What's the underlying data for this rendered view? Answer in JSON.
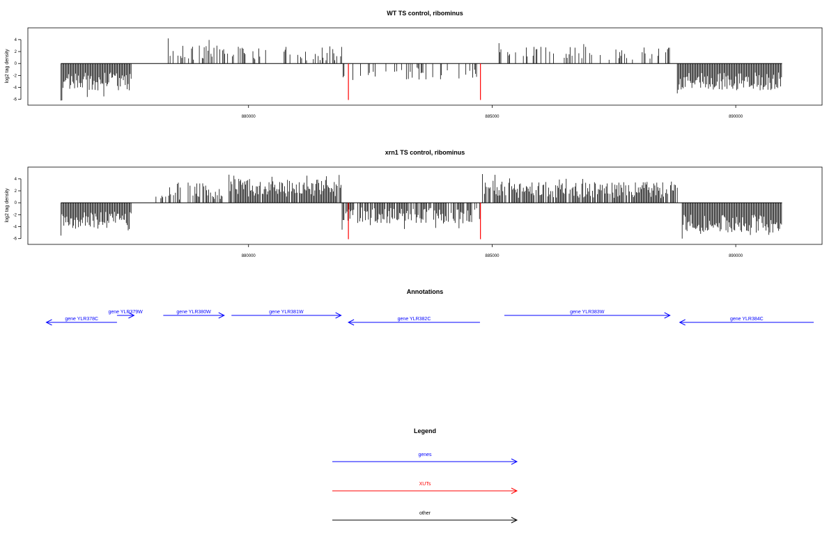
{
  "chart_data": [
    {
      "type": "bar",
      "title": "WT TS control, ribominus",
      "ylabel": "log2 tag density",
      "xlabel": "",
      "xlim": [
        875900,
        891600
      ],
      "ylim": [
        -6.5,
        5.5
      ],
      "xticks": [
        880000,
        885000,
        890000
      ],
      "yticks": [
        -6,
        -4,
        -2,
        0,
        2,
        4
      ],
      "grid": false,
      "markers": [
        {
          "x": 882050,
          "y": -6.1,
          "color": "#ff0000"
        },
        {
          "x": 884760,
          "y": -6.1,
          "color": "#ff0000"
        }
      ],
      "segments": [
        {
          "x0": 876150,
          "x1": 877600,
          "sign": -1,
          "density": 1,
          "min": 1.5,
          "max": 4.5,
          "peak": 6.2,
          "seed": 11
        },
        {
          "x0": 878200,
          "x1": 878400,
          "sign": -1,
          "density": 0.1,
          "min": 0.2,
          "max": 1.0,
          "seed": 12
        },
        {
          "x0": 878250,
          "x1": 881950,
          "sign": 1,
          "density": 0.35,
          "min": 0.5,
          "max": 3.0,
          "peak": 4.2,
          "seed": 13
        },
        {
          "x0": 881900,
          "x1": 884750,
          "sign": -1,
          "density": 0.3,
          "min": 0.5,
          "max": 2.8,
          "seed": 14
        },
        {
          "x0": 884000,
          "x1": 884600,
          "sign": 1,
          "density": 0.05,
          "min": 0.8,
          "max": 2.2,
          "seed": 15
        },
        {
          "x0": 885100,
          "x1": 888700,
          "sign": 1,
          "density": 0.3,
          "min": 0.5,
          "max": 2.8,
          "peak": 3.4,
          "seed": 16
        },
        {
          "x0": 888800,
          "x1": 890950,
          "sign": -1,
          "density": 1,
          "min": 1.5,
          "max": 4.5,
          "peak": 5.0,
          "seed": 17
        }
      ]
    },
    {
      "type": "bar",
      "title": "xrn1 TS control, ribominus",
      "ylabel": "log2 tag density",
      "xlabel": "",
      "xlim": [
        875900,
        891600
      ],
      "ylim": [
        -6.5,
        5.5
      ],
      "xticks": [
        880000,
        885000,
        890000
      ],
      "yticks": [
        -6,
        -4,
        -2,
        0,
        2,
        4
      ],
      "grid": false,
      "markers": [
        {
          "x": 882050,
          "y": -6.1,
          "color": "#ff0000"
        },
        {
          "x": 884760,
          "y": -6.1,
          "color": "#ff0000"
        }
      ],
      "segments": [
        {
          "x0": 876150,
          "x1": 877600,
          "sign": -1,
          "density": 1,
          "min": 1.5,
          "max": 4.5,
          "peak": 5.5,
          "seed": 21
        },
        {
          "x0": 877700,
          "x1": 878100,
          "sign": 1,
          "density": 0.15,
          "min": 0.5,
          "max": 2.5,
          "seed": 22
        },
        {
          "x0": 878200,
          "x1": 879500,
          "sign": 1,
          "density": 0.6,
          "min": 0.5,
          "max": 3.5,
          "seed": 23
        },
        {
          "x0": 879600,
          "x1": 881900,
          "sign": 1,
          "density": 0.95,
          "min": 1.0,
          "max": 4.0,
          "peak": 4.7,
          "seed": 24
        },
        {
          "x0": 881900,
          "x1": 884750,
          "sign": -1,
          "density": 0.85,
          "min": 0.8,
          "max": 3.5,
          "peak": 4.5,
          "seed": 25
        },
        {
          "x0": 884800,
          "x1": 888800,
          "sign": 1,
          "density": 0.8,
          "min": 0.8,
          "max": 3.5,
          "peak": 4.8,
          "seed": 26
        },
        {
          "x0": 888900,
          "x1": 890950,
          "sign": -1,
          "density": 1,
          "min": 2.0,
          "max": 5.0,
          "peak": 6.0,
          "seed": 27
        }
      ]
    }
  ],
  "annotations": {
    "title": "Annotations",
    "genes": [
      {
        "label": "gene YLR378C",
        "x0": 877300,
        "x1": 875850,
        "row": 2
      },
      {
        "label": "gene YLR379W",
        "x0": 877300,
        "x1": 877650,
        "row": 1
      },
      {
        "label": "gene YLR380W",
        "x0": 878250,
        "x1": 879500,
        "row": 1
      },
      {
        "label": "gene YLR381W",
        "x0": 879650,
        "x1": 881900,
        "row": 1
      },
      {
        "label": "gene YLR382C",
        "x0": 884750,
        "x1": 882050,
        "row": 2
      },
      {
        "label": "gene YLR383W",
        "x0": 885250,
        "x1": 888650,
        "row": 1
      },
      {
        "label": "gene YLR384C",
        "x0": 891600,
        "x1": 888850,
        "row": 2
      }
    ],
    "color": "#0000ff"
  },
  "legend": {
    "title": "Legend",
    "items": [
      {
        "label": "genes",
        "color": "#0000ff"
      },
      {
        "label": "XUTs",
        "color": "#ff0000"
      },
      {
        "label": "other",
        "color": "#000000"
      }
    ]
  }
}
